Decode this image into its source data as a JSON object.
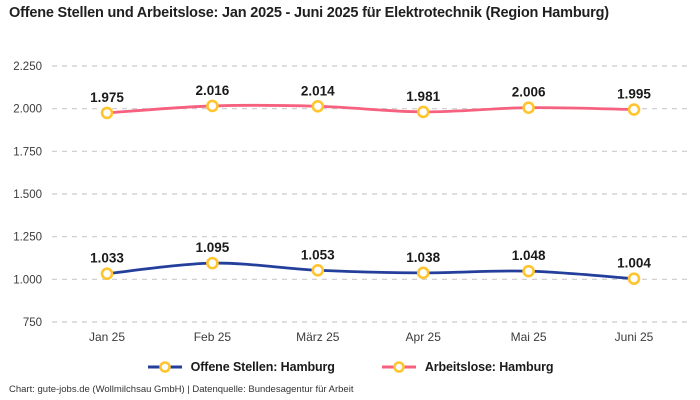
{
  "title": "Offene Stellen und Arbeitslose: Jan 2025 - Juni 2025 für Elektrotechnik (Region Hamburg)",
  "footer": "Chart: gute-jobs.de (Wollmilchsau GmbH) | Datenquelle: Bundesagentur für Arbeit",
  "colors": {
    "series_open_positions": "#243E9C",
    "series_unemployed": "#F5617E",
    "marker_ring": "#FFC42E",
    "marker_fill": "#FFFFFF",
    "gridline": "#CBCBCB",
    "tick_text": "#3B3B3B",
    "label_text": "#1A1A1A"
  },
  "chart_data": {
    "type": "line",
    "title": "Offene Stellen und Arbeitslose: Jan 2025 - Juni 2025 für Elektrotechnik (Region Hamburg)",
    "categories": [
      "Jan 25",
      "Feb 25",
      "März 25",
      "Apr 25",
      "Mai 25",
      "Juni 25"
    ],
    "series": [
      {
        "name": "Offene Stellen: Hamburg",
        "color": "#243E9C",
        "values": [
          1033,
          1095,
          1053,
          1038,
          1048,
          1004
        ],
        "labels": [
          "1.033",
          "1.095",
          "1.053",
          "1.038",
          "1.048",
          "1.004"
        ]
      },
      {
        "name": "Arbeitslose: Hamburg",
        "color": "#F5617E",
        "values": [
          1975,
          2016,
          2014,
          1981,
          2006,
          1995
        ],
        "labels": [
          "1.975",
          "2.016",
          "2.014",
          "1.981",
          "2.006",
          "1.995"
        ]
      }
    ],
    "xlabel": "",
    "ylabel": "",
    "ylim": [
      750,
      2250
    ],
    "ytick_step": 250,
    "ytick_labels": [
      "750",
      "1.000",
      "1.250",
      "1.500",
      "1.750",
      "2.000",
      "2.250"
    ],
    "grid": true,
    "grid_style": "dashed",
    "legend_position": "bottom",
    "number_format": "de-thousands-dot"
  }
}
